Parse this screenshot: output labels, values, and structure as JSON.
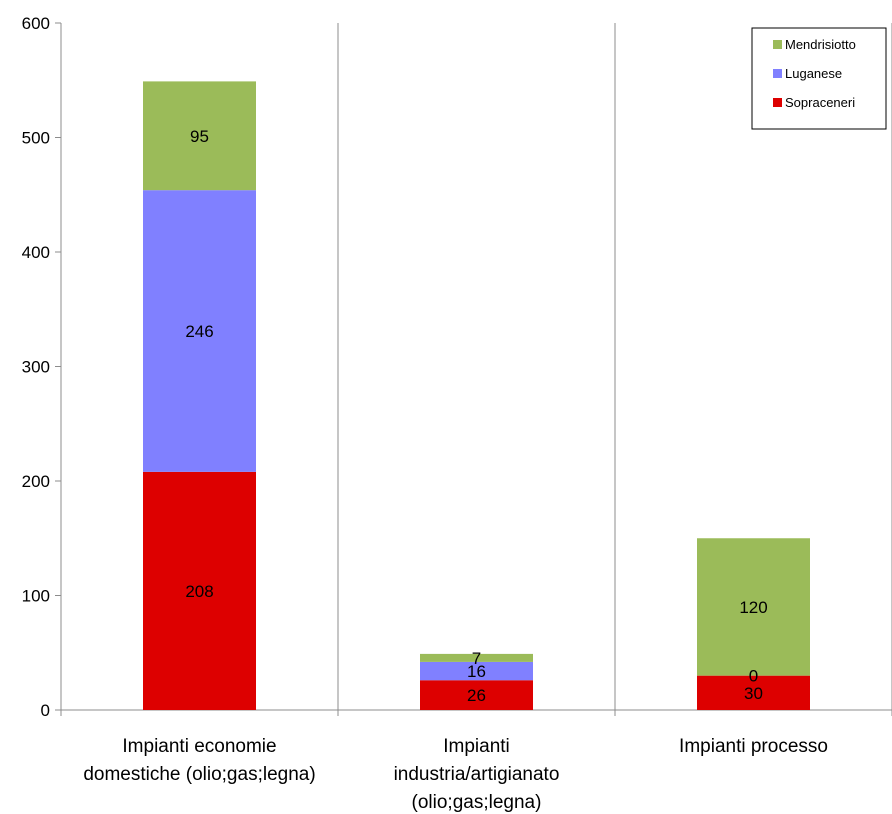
{
  "chart_data": {
    "type": "bar",
    "stacked": true,
    "categories": [
      [
        "Impianti economie",
        "domestiche (olio;gas;legna)"
      ],
      [
        "Impianti",
        "industria/artigianato",
        "(olio;gas;legna)"
      ],
      [
        "Impianti processo"
      ]
    ],
    "series": [
      {
        "name": "Sopraceneri",
        "color": "#dd0000",
        "values": [
          208,
          26,
          30
        ]
      },
      {
        "name": "Luganese",
        "color": "#8080ff",
        "values": [
          246,
          16,
          0
        ]
      },
      {
        "name": "Mendrisiotto",
        "color": "#9bbb59",
        "values": [
          95,
          7,
          120
        ]
      }
    ],
    "legend_order": [
      "Mendrisiotto",
      "Luganese",
      "Sopraceneri"
    ],
    "legend_position": "top-right",
    "ylim": [
      0,
      600
    ],
    "yticks": [
      0,
      100,
      200,
      300,
      400,
      500,
      600
    ],
    "grid": "vertical category separators",
    "title": "",
    "xlabel": "",
    "ylabel": ""
  }
}
